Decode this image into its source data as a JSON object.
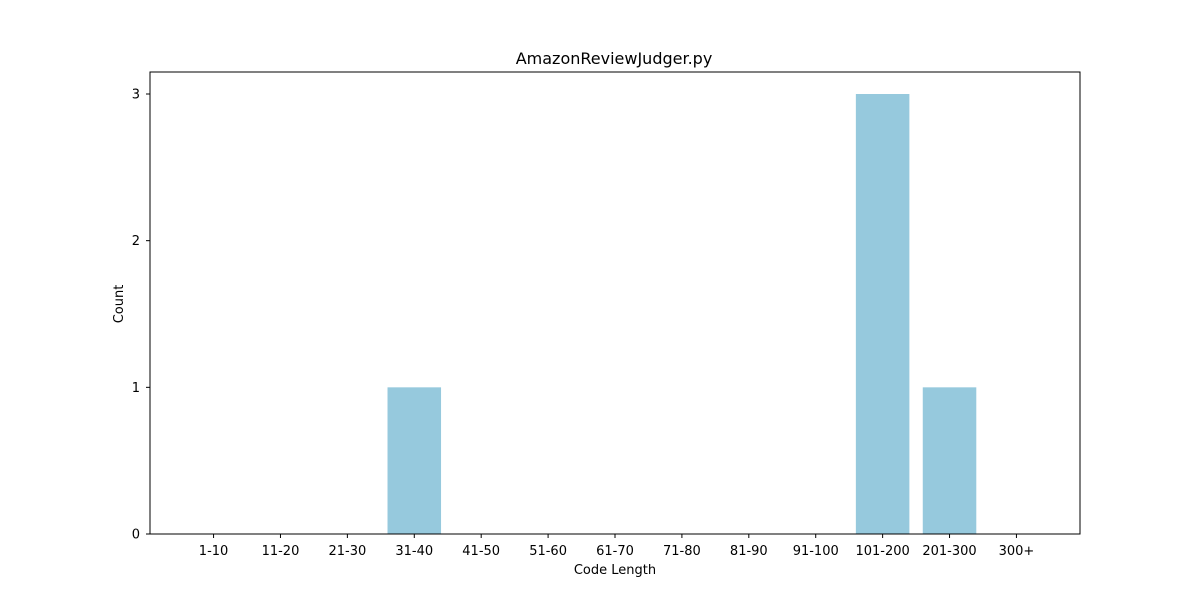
{
  "chart_data": {
    "type": "bar",
    "title": "AmazonReviewJudger.py",
    "xlabel": "Code Length",
    "ylabel": "Count",
    "categories": [
      "1-10",
      "11-20",
      "21-30",
      "31-40",
      "41-50",
      "51-60",
      "61-70",
      "71-80",
      "81-90",
      "91-100",
      "101-200",
      "201-300",
      "300+"
    ],
    "values": [
      0,
      0,
      0,
      1,
      0,
      0,
      0,
      0,
      0,
      0,
      3,
      1,
      0
    ],
    "ylim": [
      0,
      3.15
    ],
    "yticks": [
      0,
      1,
      2,
      3
    ],
    "bar_color": "#96c9dd",
    "grid": false,
    "legend": "none"
  }
}
